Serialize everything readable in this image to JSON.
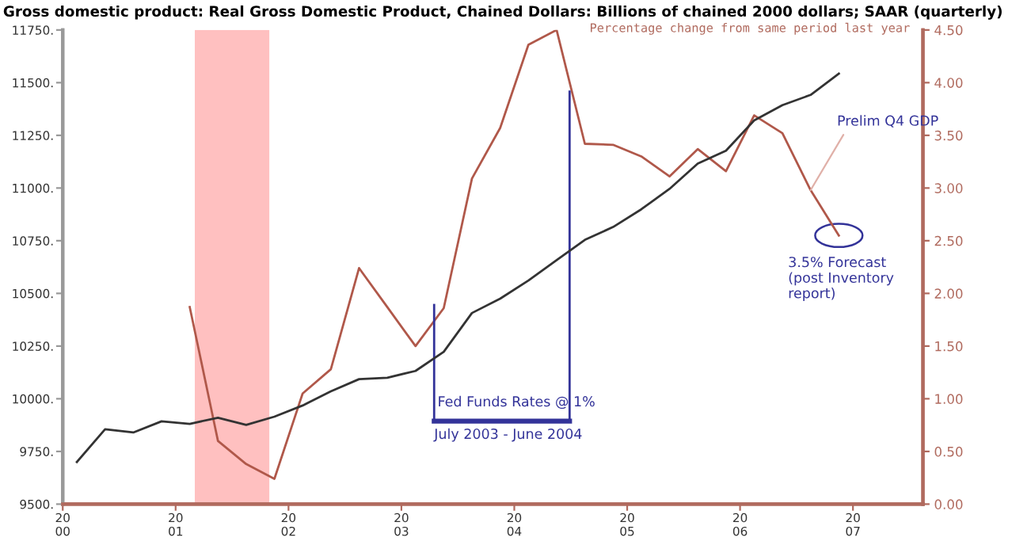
{
  "chart_data": {
    "type": "line",
    "title": "Gross domestic product: Real Gross Domestic Product, Chained Dollars: Billions of chained 2000 dollars; SAAR (quarterly)",
    "y2label": "Percentage change from same period last year",
    "series": [
      {
        "color": "#333333",
        "x": [
          2000.125,
          2000.375,
          2000.625,
          2000.875,
          2001.125,
          2001.375,
          2001.625,
          2001.875,
          2002.125,
          2002.375,
          2002.625,
          2002.875,
          2003.125,
          2003.375,
          2003.625,
          2003.875,
          2004.125,
          2004.375,
          2004.625,
          2004.875,
          2005.125,
          2005.375,
          2005.625,
          2005.875,
          2006.125,
          2006.375,
          2006.625,
          2006.875
        ],
        "values": [
          9700,
          9855,
          9840,
          9893,
          9881,
          9910,
          9876,
          9915,
          9968,
          10035,
          10093,
          10100,
          10132,
          10223,
          10407,
          10475,
          10561,
          10658,
          10754,
          10815,
          10899,
          10996,
          11116,
          11177,
          11321,
          11393,
          11442,
          11543
        ]
      },
      {
        "color": "#b0584a",
        "axis": "y2",
        "x": [
          2001.125,
          2001.375,
          2001.625,
          2001.875,
          2002.125,
          2002.375,
          2002.625,
          2002.875,
          2003.125,
          2003.375,
          2003.625,
          2003.875,
          2004.125,
          2004.375,
          2004.625,
          2004.875,
          2005.125,
          2005.375,
          2005.625,
          2005.875,
          2006.125,
          2006.375,
          2006.625,
          2006.875
        ],
        "values": [
          1.87,
          0.6,
          0.38,
          0.24,
          1.05,
          1.28,
          2.24,
          1.87,
          1.5,
          1.86,
          3.09,
          3.57,
          4.36,
          4.5,
          3.42,
          3.41,
          3.3,
          3.11,
          3.37,
          3.16,
          3.69,
          3.52,
          2.98,
          2.55
        ]
      }
    ],
    "xlim": [
      2000,
      2007.62
    ],
    "xticks": [
      2000,
      2001,
      2002,
      2003,
      2004,
      2005,
      2006,
      2007
    ],
    "ylim": [
      9500,
      11750
    ],
    "yticks": [
      {
        "value": 9500,
        "label": "9500."
      },
      {
        "value": 9750,
        "label": "9750."
      },
      {
        "value": 10000,
        "label": "10000."
      },
      {
        "value": 10250,
        "label": "10250."
      },
      {
        "value": 10500,
        "label": "10500."
      },
      {
        "value": 10750,
        "label": "10750."
      },
      {
        "value": 11000,
        "label": "11000."
      },
      {
        "value": 11250,
        "label": "11250."
      },
      {
        "value": 11500,
        "label": "11500."
      },
      {
        "value": 11750,
        "label": "11750."
      }
    ],
    "y2lim": [
      0,
      4.5
    ],
    "y2ticks": [
      {
        "value": 0,
        "label": "0.00"
      },
      {
        "value": 0.5,
        "label": "0.50"
      },
      {
        "value": 1,
        "label": "1.00"
      },
      {
        "value": 1.5,
        "label": "1.50"
      },
      {
        "value": 2,
        "label": "2.00"
      },
      {
        "value": 2.5,
        "label": "2.50"
      },
      {
        "value": 3,
        "label": "3.00"
      },
      {
        "value": 3.5,
        "label": "3.50"
      },
      {
        "value": 4,
        "label": "4.00"
      },
      {
        "value": 4.5,
        "label": "4.50"
      }
    ],
    "bands": [
      {
        "axis": "x",
        "from": 2001.17,
        "to": 2001.83,
        "color": "#ffc0c0"
      }
    ],
    "ref_lines": [
      {
        "axis": "x",
        "value": 2003.29,
        "label": "Fed Funds Rates @ 1%",
        "color": "#333399"
      },
      {
        "axis": "x",
        "value": 2004.49,
        "label": "July 2003 - June 2004",
        "color": "#333399"
      }
    ],
    "annotations": [
      {
        "text": "Prelim Q4 GDP",
        "x": 2006.625,
        "y": 10990
      },
      "3.5% Forecast\n(post Inventory\nreport)"
    ],
    "grid": false,
    "legend": false,
    "marker": "none",
    "line_style": "solid"
  }
}
